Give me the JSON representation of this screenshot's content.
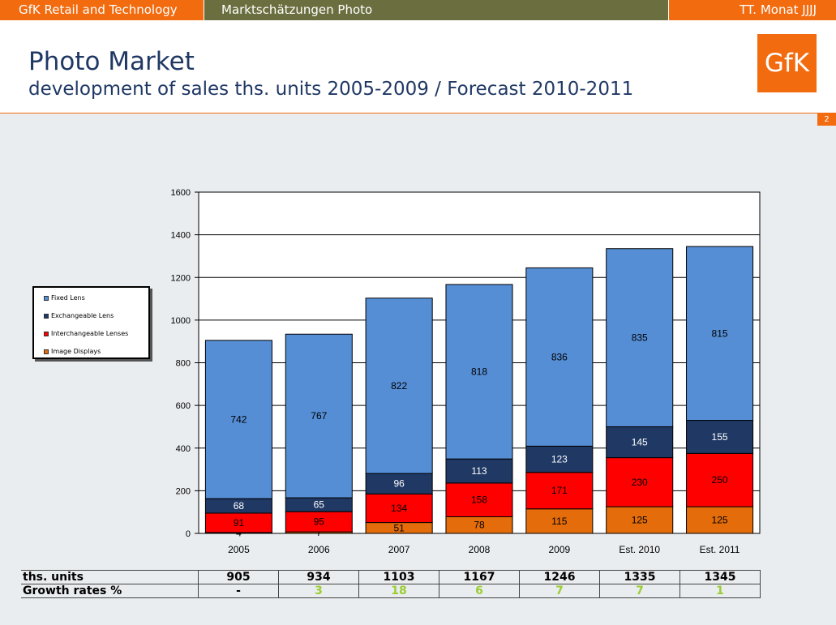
{
  "topbar": {
    "left": "GfK Retail and Technology",
    "middle": "Marktschätzungen Photo",
    "right": "TT. Monat JJJJ"
  },
  "header": {
    "title": "Photo Market",
    "subtitle": "development of sales ths. units 2005-2009  / Forecast 2010-2011",
    "logo_text": "GfK",
    "page_number": "2"
  },
  "colors": {
    "fixed_lens": "#558ed5",
    "exchangeable_lens": "#1f3864",
    "interchangeable_lenses": "#ff0000",
    "image_displays": "#e46c0a",
    "accent": "#f26b0f",
    "growth_green": "#9acd32"
  },
  "chart_data": {
    "type": "bar",
    "stacked": true,
    "categories": [
      "2005",
      "2006",
      "2007",
      "2008",
      "2009",
      "Est. 2010",
      "Est. 2011"
    ],
    "series": [
      {
        "name": "Image Displays",
        "values": [
          4,
          7,
          51,
          78,
          115,
          125,
          125
        ]
      },
      {
        "name": "Interchangeable Lenses",
        "values": [
          91,
          95,
          134,
          158,
          171,
          230,
          250
        ]
      },
      {
        "name": "Exchangeable Lens",
        "values": [
          68,
          65,
          96,
          113,
          123,
          145,
          155
        ]
      },
      {
        "name": "Fixed Lens",
        "values": [
          742,
          767,
          822,
          818,
          836,
          835,
          815
        ]
      }
    ],
    "ylim": [
      0,
      1600
    ],
    "yticks": [
      0,
      200,
      400,
      600,
      800,
      1000,
      1200,
      1400,
      1600
    ],
    "grid": true,
    "legend_position": "left",
    "legend_order": [
      "Fixed Lens",
      "Exchangeable Lens",
      "Interchangeable Lenses",
      "Image Displays"
    ]
  },
  "table": {
    "rows": [
      {
        "label": "ths. units",
        "values": [
          "905",
          "934",
          "1103",
          "1167",
          "1246",
          "1335",
          "1345"
        ]
      },
      {
        "label": "Growth rates %",
        "values": [
          "-",
          "3",
          "18",
          "6",
          "7",
          "7",
          "1"
        ]
      }
    ]
  }
}
